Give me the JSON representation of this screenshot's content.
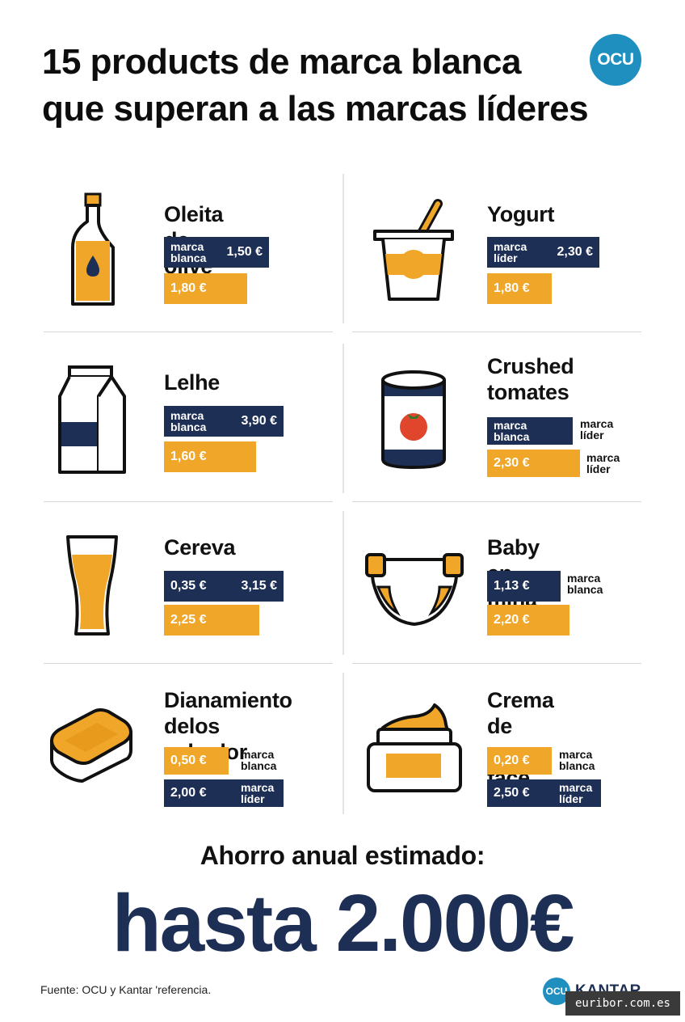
{
  "title": {
    "line1": "15 products de marca blanca",
    "line2": "que superan a las marcas líderes"
  },
  "logo": {
    "text": "OCU"
  },
  "products": [
    {
      "name_lines": [
        "Oleita de olive"
      ],
      "icon": "olive-oil-bottle-icon",
      "bar1": {
        "label_lines": [
          "marca",
          "blanca"
        ],
        "value": "1,50 €"
      },
      "bar2": {
        "value": "1,80 €"
      }
    },
    {
      "name_lines": [
        "Yogurt"
      ],
      "icon": "yogurt-cup-icon",
      "bar1": {
        "label_lines": [
          "marca",
          "líder"
        ],
        "value": "2,30 €"
      },
      "bar2": {
        "value": "1,80 €"
      }
    },
    {
      "name_lines": [
        "Lelhe"
      ],
      "icon": "milk-carton-icon",
      "bar1": {
        "label_lines": [
          "marca",
          "blanca"
        ],
        "value": "3,90 €"
      },
      "bar2": {
        "value": "1,60 €"
      }
    },
    {
      "name_lines": [
        "Crushed",
        "tomates"
      ],
      "icon": "tomato-can-icon",
      "bar1": {
        "label_lines": [
          "marca",
          "blanca"
        ],
        "value": ""
      },
      "bar1_side": [
        "marca",
        "líder"
      ],
      "bar2": {
        "value": "2,30 €"
      },
      "bar2_side": [
        "marca",
        "líder"
      ]
    },
    {
      "name_lines": [
        "Cereva"
      ],
      "icon": "beer-glass-icon",
      "bar1": {
        "value_left": "0,35 €",
        "value": "3,15 €"
      },
      "bar2": {
        "value": "2,25 €"
      }
    },
    {
      "name_lines": [
        "Baby en ɱiña"
      ],
      "icon": "diaper-icon",
      "bar1": {
        "value": "1,13 €"
      },
      "bar1_side": [
        "marca",
        "blanca"
      ],
      "bar2": {
        "value": "2,20 €"
      }
    },
    {
      "name_lines": [
        "Dianamiento",
        "delos vabador"
      ],
      "icon": "dishwasher-tablet-icon",
      "bar1": {
        "value": "0,50 €"
      },
      "bar1_side": [
        "marca",
        "blanca"
      ],
      "bar2": {
        "value": "2,00 €"
      },
      "bar2_side": [
        "marca",
        "líder"
      ]
    },
    {
      "name_lines": [
        "Crema de",
        "canı a face"
      ],
      "icon": "face-cream-jar-icon",
      "bar1": {
        "value": "0,20 €"
      },
      "bar1_side": [
        "marca",
        "blanca"
      ],
      "bar2": {
        "value": "2,50 €"
      },
      "bar2_side": [
        "marca",
        "líder"
      ]
    }
  ],
  "savings": {
    "title": "Ahorro anual estimado:",
    "value": "hasta 2.000€"
  },
  "source": "Fuente: OCU y Kantar  'referencia.",
  "footer_logos": {
    "ocu": "OCU",
    "kantar": "KANTAR"
  },
  "watermark": "euribor.com.es",
  "colors": {
    "navy": "#1e2f55",
    "orange": "#f0a628",
    "ocu_blue": "#1f8fc0"
  }
}
